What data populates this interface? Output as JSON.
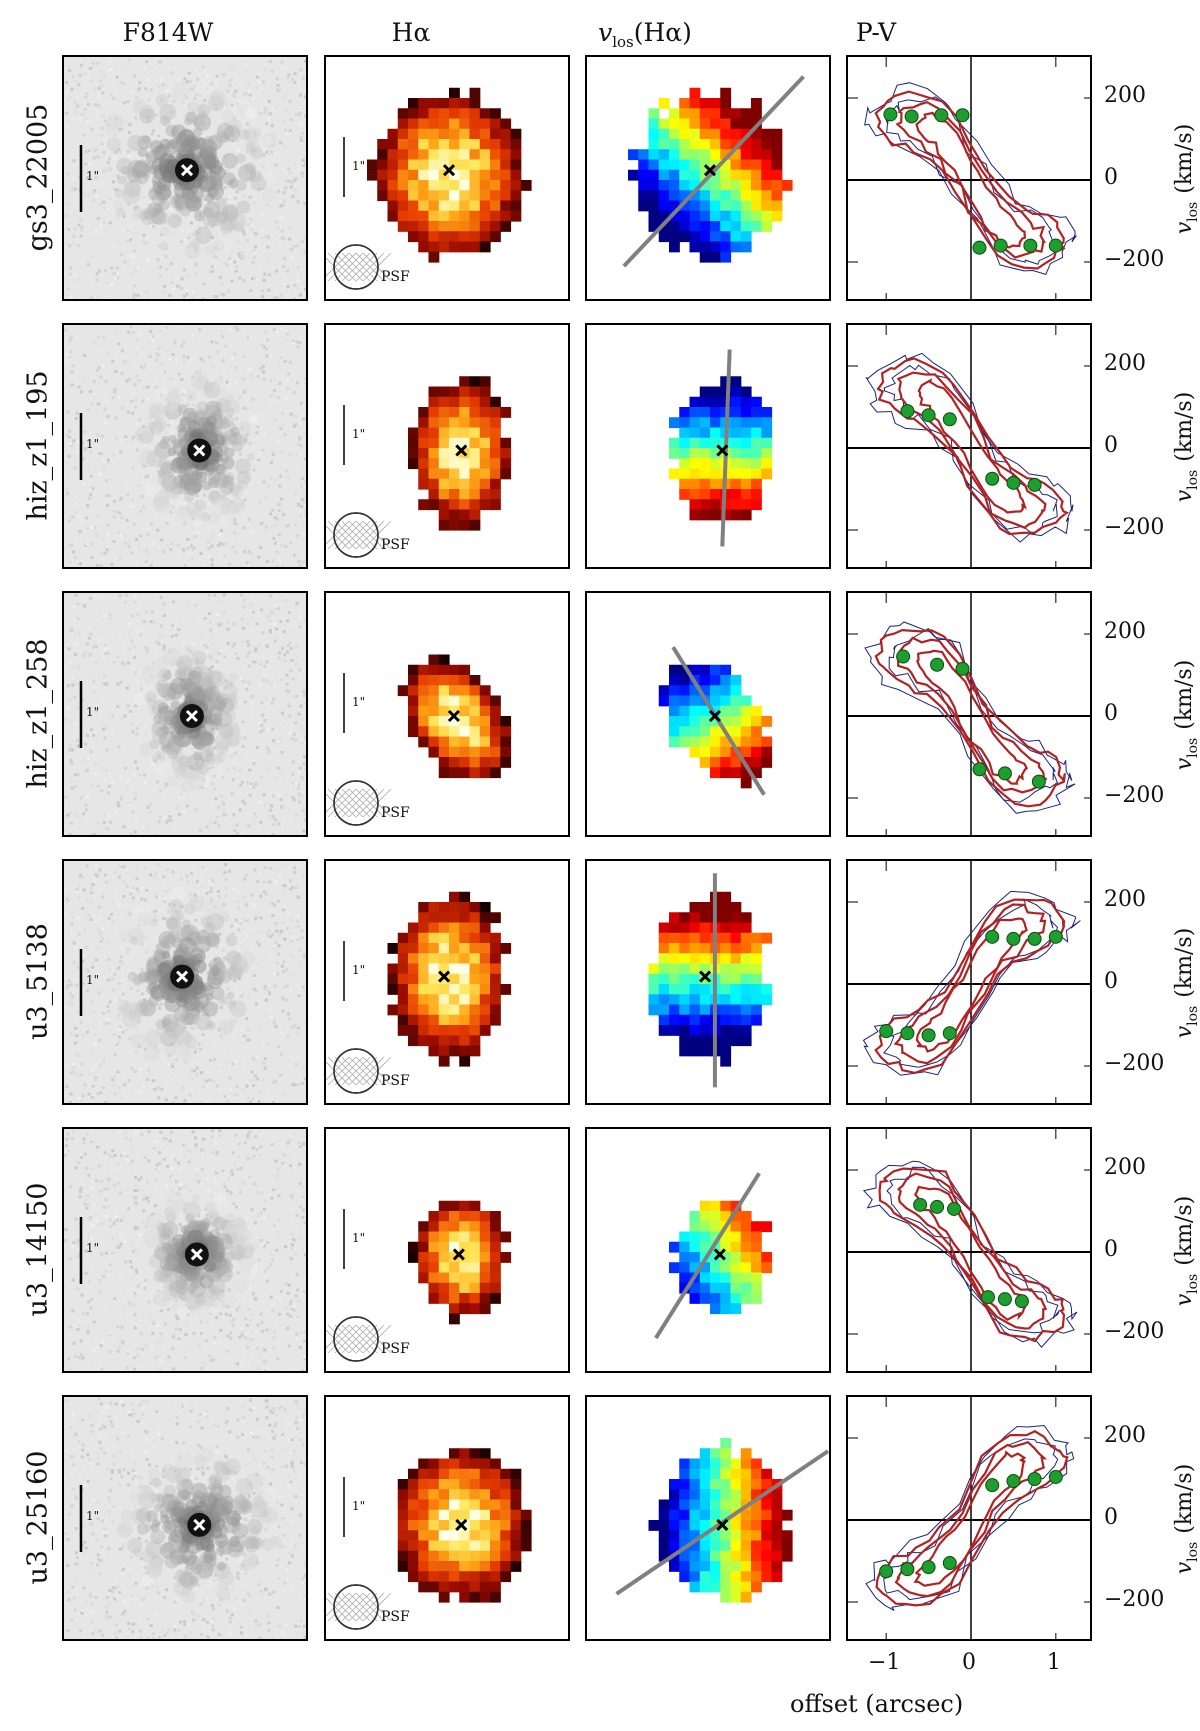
{
  "columns": [
    "F814W",
    "Hα",
    "v",
    "P-V"
  ],
  "column3_title": {
    "main": "v",
    "sub": "los",
    "paren": "(Hα)"
  },
  "scale_label": "1\"",
  "psf_label": "PSF",
  "rows": [
    {
      "id": "gs3_22005"
    },
    {
      "id": "hiz_z1_195"
    },
    {
      "id": "hiz_z1_258"
    },
    {
      "id": "u3_5138"
    },
    {
      "id": "u3_14150"
    },
    {
      "id": "u3_25160"
    }
  ],
  "pv_axis": {
    "ylabel_main": "v",
    "ylabel_sub": "los",
    "ylabel_unit": "(km/s)",
    "yticks": [
      "200",
      "0",
      "−200"
    ],
    "xticks": [
      "−1",
      "0",
      "1"
    ],
    "xlabel": "offset (arcsec)"
  },
  "pv_points": [
    [
      [
        -0.95,
        160
      ],
      [
        -0.7,
        155
      ],
      [
        -0.35,
        158
      ],
      [
        -0.1,
        158
      ],
      [
        0.1,
        -165
      ],
      [
        0.35,
        -160
      ],
      [
        0.7,
        -160
      ],
      [
        1.0,
        -160
      ]
    ],
    [
      [
        -0.75,
        90
      ],
      [
        -0.5,
        80
      ],
      [
        -0.25,
        70
      ],
      [
        0.25,
        -75
      ],
      [
        0.5,
        -85
      ],
      [
        0.75,
        -90
      ]
    ],
    [
      [
        -0.8,
        145
      ],
      [
        -0.4,
        125
      ],
      [
        -0.1,
        115
      ],
      [
        0.1,
        -130
      ],
      [
        0.4,
        -140
      ],
      [
        0.8,
        -160
      ]
    ],
    [
      [
        -1.0,
        -115
      ],
      [
        -0.75,
        -120
      ],
      [
        -0.5,
        -125
      ],
      [
        -0.25,
        -120
      ],
      [
        0.25,
        115
      ],
      [
        0.5,
        110
      ],
      [
        0.75,
        110
      ],
      [
        1.0,
        115
      ]
    ],
    [
      [
        -0.6,
        115
      ],
      [
        -0.4,
        110
      ],
      [
        -0.2,
        105
      ],
      [
        0.2,
        -110
      ],
      [
        0.4,
        -115
      ],
      [
        0.6,
        -120
      ]
    ],
    [
      [
        -1.0,
        -125
      ],
      [
        -0.75,
        -120
      ],
      [
        -0.5,
        -115
      ],
      [
        -0.25,
        -105
      ],
      [
        0.25,
        85
      ],
      [
        0.5,
        95
      ],
      [
        0.75,
        100
      ],
      [
        1.0,
        105
      ]
    ]
  ],
  "colors": {
    "contour_red": "#b22222",
    "contour_blue": "#1a237e",
    "dot": "#1e9e2e",
    "pa_line": "#808080"
  }
}
